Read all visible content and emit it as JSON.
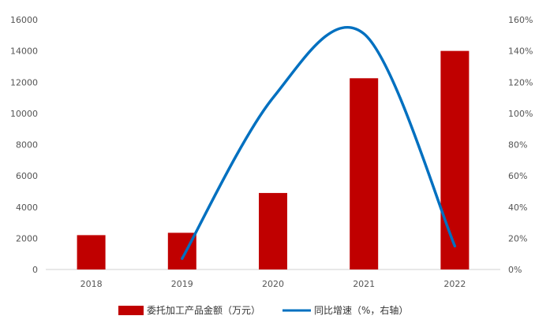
{
  "chart_data": {
    "type": "bar",
    "categories": [
      "2018",
      "2019",
      "2020",
      "2021",
      "2022"
    ],
    "series": [
      {
        "name": "委托加工产品金额（万元）",
        "type": "bar",
        "axis": "left",
        "color": "#C00000",
        "values": [
          2200,
          2350,
          4900,
          12250,
          14000
        ]
      },
      {
        "name": "同比增速（%，右轴）",
        "type": "line",
        "axis": "right",
        "color": "#0070C0",
        "smooth": true,
        "values": [
          null,
          7,
          110,
          151,
          15
        ]
      }
    ],
    "y_left": {
      "min": 0,
      "max": 16000,
      "step": 2000,
      "ticks": [
        "0",
        "2000",
        "4000",
        "6000",
        "8000",
        "10000",
        "12000",
        "14000",
        "16000"
      ]
    },
    "y_right": {
      "min": 0,
      "max": 160,
      "step": 20,
      "ticks": [
        "0%",
        "20%",
        "40%",
        "60%",
        "80%",
        "100%",
        "120%",
        "140%",
        "160%"
      ]
    },
    "grid": false,
    "legend_position": "bottom"
  }
}
